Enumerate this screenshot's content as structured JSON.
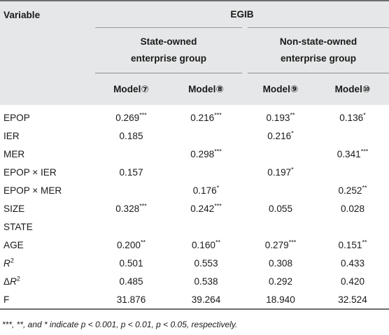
{
  "header": {
    "variable_label": "Variable",
    "dependent_label": "EGIB",
    "groups": [
      {
        "label": "State-owned enterprise group"
      },
      {
        "label": "Non-state-owned enterprise group"
      }
    ],
    "group_lines": [
      [
        "State-owned",
        "enterprise group"
      ],
      [
        "Non-state-owned",
        "enterprise group"
      ]
    ],
    "models": [
      "Model⑦",
      "Model⑧",
      "Model⑨",
      "Model⑩"
    ]
  },
  "rows": [
    {
      "variable": "EPOP",
      "values": [
        "0.269***",
        "0.216***",
        "0.193**",
        "0.136*"
      ]
    },
    {
      "variable": "IER",
      "values": [
        "0.185",
        "",
        "0.216*",
        ""
      ]
    },
    {
      "variable": "MER",
      "values": [
        "",
        "0.298***",
        "",
        "0.341***"
      ]
    },
    {
      "variable": "EPOP × IER",
      "values": [
        "0.157",
        "",
        "0.197*",
        ""
      ]
    },
    {
      "variable": "EPOP × MER",
      "values": [
        "",
        "0.176*",
        "",
        "0.252**"
      ]
    },
    {
      "variable": "SIZE",
      "values": [
        "0.328***",
        "0.242***",
        "0.055",
        "0.028"
      ]
    },
    {
      "variable": "STATE",
      "values": [
        "",
        "",
        "",
        ""
      ]
    },
    {
      "variable": "AGE",
      "values": [
        "0.200**",
        "0.160**",
        "0.279***",
        "0.151**"
      ]
    },
    {
      "variable": "R2",
      "values": [
        "0.501",
        "0.553",
        "0.308",
        "0.433"
      ]
    },
    {
      "variable": "ΔR2",
      "values": [
        "0.485",
        "0.538",
        "0.292",
        "0.420"
      ]
    },
    {
      "variable": "F",
      "values": [
        "31.876",
        "39.264",
        "18.940",
        "32.524"
      ]
    }
  ],
  "note": "***, **, and * indicate p < 0.001, p < 0.01, p < 0.05, respectively."
}
